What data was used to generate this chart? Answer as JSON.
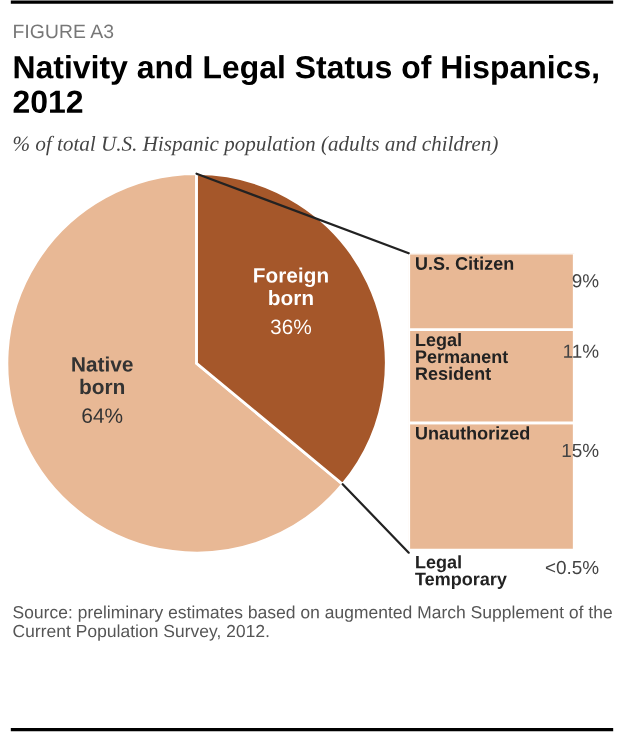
{
  "chart_data": [
    {
      "type": "pie",
      "title": "Nativity and Legal Status of Hispanics, 2012",
      "subtitle": "% of total U.S. Hispanic population (adults and children)",
      "annotations": [
        "FIGURE A3",
        "Source: preliminary estimates based on augmented March Supplement of the Current Population Survey, 2012."
      ],
      "categories": [
        "Native\nborn",
        "Foreign\nborn"
      ],
      "values": [
        64,
        36
      ],
      "colors": [
        "#e8b895",
        "#a5572a"
      ],
      "value_labels": [
        "64%",
        "36%"
      ]
    },
    {
      "type": "bar",
      "stacked": true,
      "categories": [
        null
      ],
      "series": [
        {
          "name": "Legal\nTemporary",
          "color": "#e8b895",
          "values": [
            0.3
          ],
          "value_labels": [
            "<0.5%"
          ]
        },
        {
          "name": "Unauthorized",
          "color": "#e8b895",
          "values": [
            15
          ],
          "value_labels": [
            "15%"
          ]
        },
        {
          "name": "Legal\nPermanent\nResident",
          "color": "#e8b895",
          "values": [
            11
          ],
          "value_labels": [
            "11%"
          ]
        },
        {
          "name": "U.S. Citizen",
          "color": "#e8b895",
          "values": [
            9
          ],
          "value_labels": [
            "9%"
          ]
        }
      ]
    }
  ]
}
